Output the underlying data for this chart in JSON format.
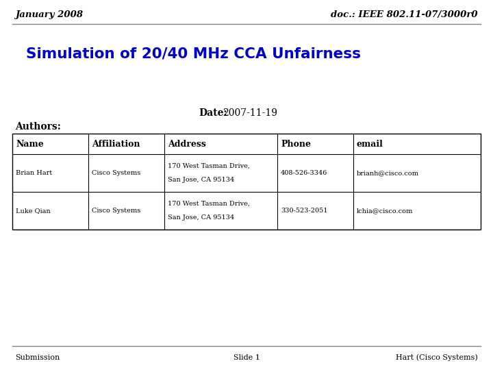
{
  "header_left": "January 2008",
  "header_right": "doc.: IEEE 802.11-07/3000r0",
  "title": "Simulation of 20/40 MHz CCA Unfairness",
  "title_color": "#0000CC",
  "date_label": "Date:",
  "date_value": "2007-11-19",
  "authors_label": "Authors:",
  "table_headers": [
    "Name",
    "Affiliation",
    "Address",
    "Phone",
    "email"
  ],
  "table_rows": [
    [
      "Brian Hart",
      "Cisco Systems",
      "170 West Tasman Drive,\nSan Jose, CA 95134",
      "408-526-3346",
      "brianh@cisco.com"
    ],
    [
      "Luke Qian",
      "Cisco Systems",
      "170 West Tasman Drive,\nSan Jose, CA 95134",
      "330-523-2051",
      "lchia@cisco.com"
    ]
  ],
  "footer_left": "Submission",
  "footer_center": "Slide 1",
  "footer_right": "Hart (Cisco Systems)",
  "bg_color": "#ffffff",
  "line_color": "#808080"
}
